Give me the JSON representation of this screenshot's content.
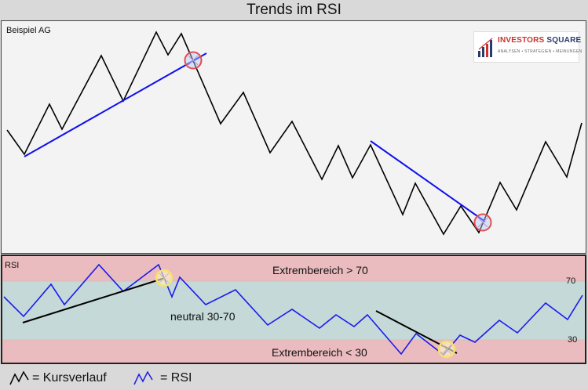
{
  "title": "Trends im RSI",
  "price_panel": {
    "label": "Beispiel AG",
    "logo": {
      "name_part1": "INVESTORS",
      "name_part2": "SQUARE",
      "tagline": "ANALYSEN • STRATEGIEN • MEINUNGEN",
      "icon": "bar-chart-logo-icon"
    },
    "line_color": "#000000",
    "trendline_color": "#1010ee",
    "marker_color": "#e05050"
  },
  "rsi_panel": {
    "label": "RSI",
    "zones": {
      "upper": "Extrembereich > 70",
      "middle": "neutral 30-70",
      "lower": "Extrembereich < 30"
    },
    "levels": {
      "upper": "70",
      "lower": "30"
    },
    "colors": {
      "extreme": "#ebbcbf",
      "neutral": "#c4d9d8",
      "line": "#1a1aee",
      "trendline": "#000000",
      "marker": "#f5e070"
    }
  },
  "legend": {
    "price_label": "= Kursverlauf",
    "rsi_label": "= RSI",
    "price_icon": "zigzag-black-icon",
    "rsi_icon": "zigzag-blue-icon"
  }
}
